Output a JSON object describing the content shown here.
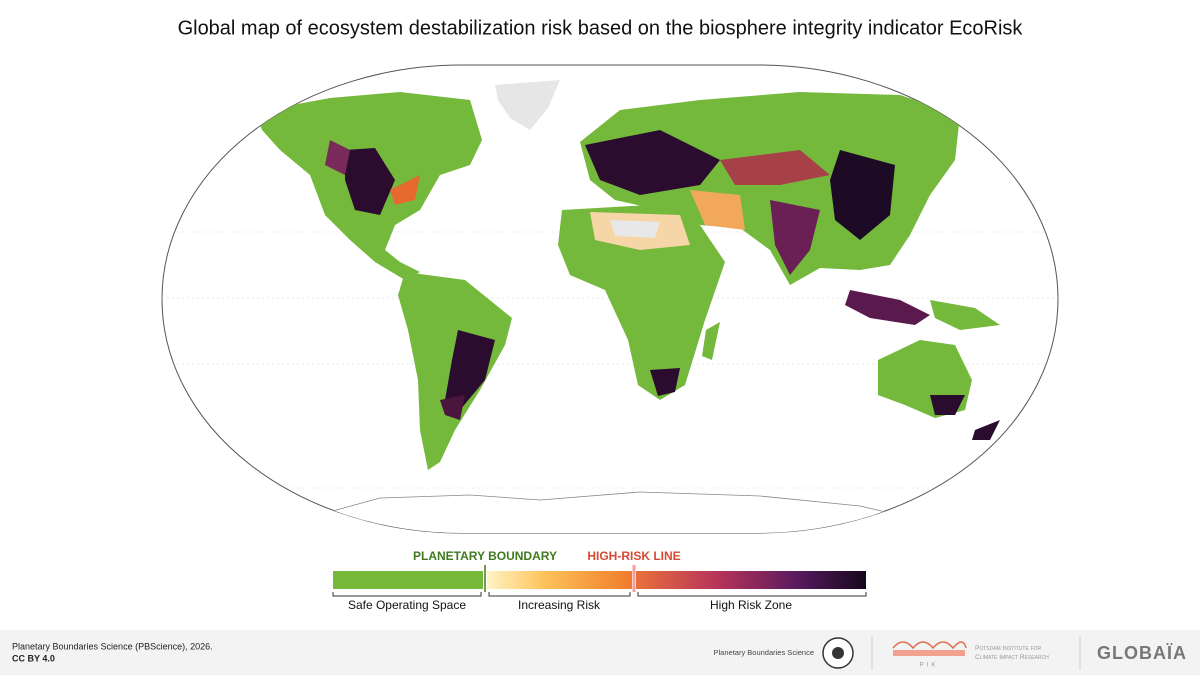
{
  "header": {
    "title": "Global map of ecosystem destabilization risk based on the biosphere integrity indicator EcoRisk"
  },
  "legend": {
    "markers": [
      "PLANETARY BOUNDARY",
      "HIGH-RISK LINE"
    ],
    "segments": [
      "Safe Operating Space",
      "Increasing Risk",
      "High Risk Zone"
    ]
  },
  "footer": {
    "credit": "Planetary Boundaries Science (PBScience), 2026.",
    "license": "CC BY 4.0",
    "logos": [
      "Planetary Boundaries Science",
      "Potsdam Institute for Climate Impact Research",
      "PIK",
      "GLOBAÏA"
    ]
  }
}
